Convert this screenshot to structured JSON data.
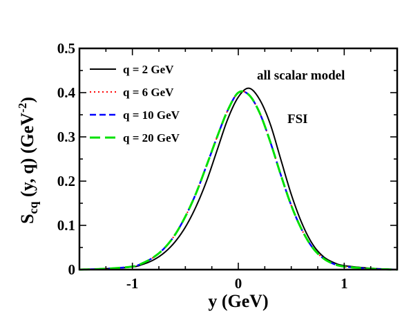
{
  "chart_data": {
    "type": "line",
    "xlabel": "y (GeV)",
    "ylabel_main": "S",
    "ylabel_sub": "cq",
    "ylabel_rest": " (y, q) (GeV",
    "ylabel_sup": "-2",
    "ylabel_close": ")",
    "xlim": [
      -1.5,
      1.5
    ],
    "ylim": [
      0,
      0.5
    ],
    "x_ticks": [
      -1,
      0,
      1
    ],
    "x_tick_labels": [
      "-1",
      "0",
      "1"
    ],
    "y_ticks": [
      0,
      0.1,
      0.2,
      0.3,
      0.4,
      0.5
    ],
    "y_tick_labels": [
      "0",
      "0.1",
      "0.2",
      "0.3",
      "0.4",
      "0.5"
    ],
    "grid": false,
    "legend_position": "top-left",
    "annotations": [
      "all scalar model",
      "FSI"
    ],
    "x": [
      -1.5,
      -1.25,
      -1.0,
      -0.9,
      -0.8,
      -0.7,
      -0.6,
      -0.5,
      -0.4,
      -0.3,
      -0.2,
      -0.1,
      0.0,
      0.1,
      0.2,
      0.3,
      0.4,
      0.5,
      0.6,
      0.7,
      0.8,
      0.9,
      1.0,
      1.25,
      1.5
    ],
    "series": [
      {
        "name": "q = 2 GeV",
        "color": "#000000",
        "dash": "solid",
        "values": [
          0.0,
          0.002,
          0.006,
          0.012,
          0.022,
          0.038,
          0.062,
          0.096,
          0.142,
          0.2,
          0.27,
          0.34,
          0.39,
          0.41,
          0.385,
          0.33,
          0.25,
          0.17,
          0.105,
          0.058,
          0.03,
          0.016,
          0.009,
          0.003,
          0.0
        ]
      },
      {
        "name": "q = 6 GeV",
        "color": "#ff0000",
        "dash": "dotted",
        "values": [
          0.0,
          0.002,
          0.007,
          0.015,
          0.028,
          0.048,
          0.078,
          0.12,
          0.172,
          0.235,
          0.3,
          0.36,
          0.4,
          0.395,
          0.355,
          0.29,
          0.215,
          0.145,
          0.09,
          0.05,
          0.026,
          0.013,
          0.007,
          0.002,
          0.0
        ]
      },
      {
        "name": "q = 10 GeV",
        "color": "#0000ff",
        "dash": "dashed",
        "values": [
          0.0,
          0.002,
          0.007,
          0.015,
          0.028,
          0.048,
          0.078,
          0.12,
          0.172,
          0.235,
          0.3,
          0.36,
          0.4,
          0.395,
          0.355,
          0.29,
          0.215,
          0.145,
          0.09,
          0.05,
          0.026,
          0.013,
          0.007,
          0.002,
          0.0
        ]
      },
      {
        "name": "q = 20 GeV",
        "color": "#00e000",
        "dash": "longdash",
        "values": [
          0.0,
          0.002,
          0.007,
          0.015,
          0.028,
          0.048,
          0.078,
          0.12,
          0.172,
          0.235,
          0.3,
          0.36,
          0.4,
          0.395,
          0.355,
          0.29,
          0.215,
          0.145,
          0.09,
          0.05,
          0.026,
          0.013,
          0.007,
          0.002,
          0.0
        ]
      }
    ]
  }
}
